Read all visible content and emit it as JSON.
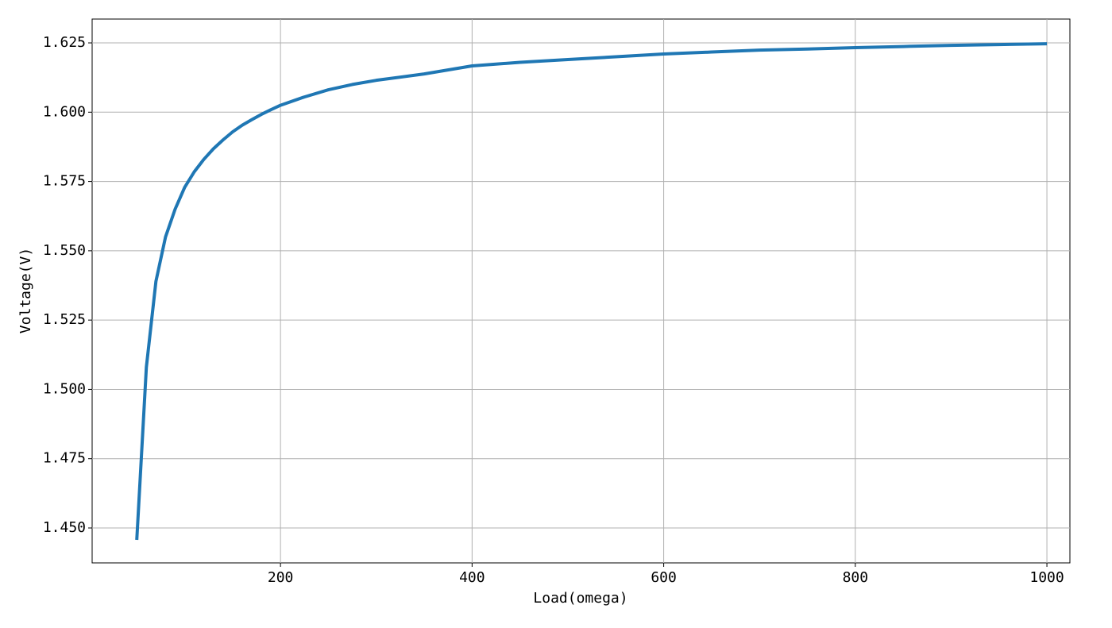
{
  "chart_data": {
    "type": "line",
    "x_label": "Load(omega)",
    "y_label": "Voltage(V)",
    "x": [
      50,
      60,
      70,
      80,
      90,
      100,
      110,
      120,
      130,
      140,
      150,
      160,
      170,
      180,
      190,
      200,
      225,
      250,
      275,
      300,
      350,
      400,
      450,
      500,
      550,
      600,
      650,
      700,
      750,
      800,
      850,
      900,
      950,
      1000
    ],
    "series": [
      {
        "name": "Voltage",
        "color": "#1f77b4",
        "values": [
          1.4457,
          1.508,
          1.539,
          1.555,
          1.565,
          1.5729,
          1.5785,
          1.583,
          1.5868,
          1.59,
          1.5929,
          1.5953,
          1.5973,
          1.5992,
          1.6009,
          1.6025,
          1.6055,
          1.6081,
          1.61,
          1.6115,
          1.6138,
          1.6167,
          1.618,
          1.619,
          1.62,
          1.621,
          1.6217,
          1.6224,
          1.6228,
          1.6233,
          1.6237,
          1.6241,
          1.6244,
          1.6247
        ]
      }
    ],
    "xlim": [
      3.4,
      1024
    ],
    "ylim": [
      1.4374,
      1.6336
    ],
    "xticks": [
      200,
      400,
      600,
      800,
      1000
    ],
    "yticks": [
      {
        "value": 1.45,
        "label": "1.450"
      },
      {
        "value": 1.475,
        "label": "1.475"
      },
      {
        "value": 1.5,
        "label": "1.500"
      },
      {
        "value": 1.525,
        "label": "1.525"
      },
      {
        "value": 1.55,
        "label": "1.550"
      },
      {
        "value": 1.575,
        "label": "1.575"
      },
      {
        "value": 1.6,
        "label": "1.600"
      },
      {
        "value": 1.625,
        "label": "1.625"
      }
    ],
    "grid": true
  }
}
